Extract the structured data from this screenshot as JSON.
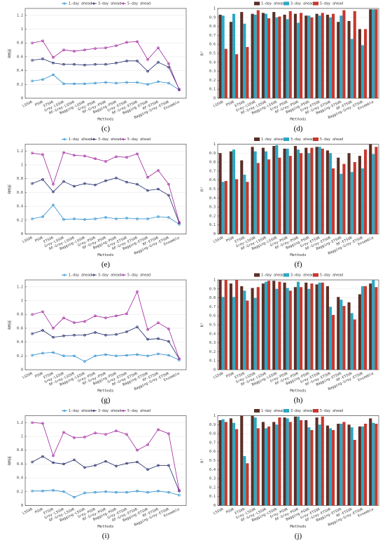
{
  "chart_data": [
    {
      "type": "line",
      "caption": "(c)",
      "xlabel": "Methods",
      "ylabel": "RMSE",
      "ylim": [
        0,
        1.3
      ],
      "yticks": [
        0,
        0.2,
        0.4,
        0.6,
        0.8,
        1,
        1.2
      ],
      "grid": true,
      "legend": "top",
      "categories": [
        "LSSVR",
        "PSVR",
        "ETSVR",
        "Grey-LSSVR",
        "RF-Grey-LSSVR",
        "Bagging-LSSVR",
        "Grey-PSVR",
        "RF-Grey-PSVR",
        "Bagging-PSVR",
        "Grey-ETSVR",
        "RF-Grey-ETSVR",
        "Bagging-ETSVR",
        "RF-ETSVR",
        "Bagging-Grey-ETSVR",
        "Ensemble"
      ],
      "series": [
        {
          "name": "1-day ahead",
          "color": "#2b8fd0",
          "values": [
            0.25,
            0.27,
            0.34,
            0.21,
            0.21,
            0.21,
            0.22,
            0.23,
            0.22,
            0.23,
            0.23,
            0.2,
            0.24,
            0.22,
            0.12
          ]
        },
        {
          "name": "3-day ahead",
          "color": "#1f2a6b",
          "values": [
            0.55,
            0.57,
            0.51,
            0.49,
            0.49,
            0.48,
            0.49,
            0.49,
            0.51,
            0.54,
            0.54,
            0.39,
            0.52,
            0.45,
            0.13
          ]
        },
        {
          "name": "5-day ahead",
          "color": "#a0249c",
          "values": [
            0.8,
            0.83,
            0.59,
            0.7,
            0.68,
            0.7,
            0.72,
            0.73,
            0.76,
            0.81,
            0.82,
            0.56,
            0.73,
            0.5,
            0.12
          ]
        }
      ]
    },
    {
      "type": "bar",
      "caption": "(d)",
      "xlabel": "Methods",
      "ylabel": "R²",
      "ylim": [
        0,
        1
      ],
      "yticks": [
        0,
        0.1,
        0.2,
        0.3,
        0.4,
        0.5,
        0.6,
        0.7,
        0.8,
        0.9,
        1
      ],
      "grid": true,
      "legend": "top",
      "categories": [
        "LSSVR",
        "PSVR",
        "ETSVR",
        "Grey-LSSVR",
        "RF-Grey-LSSVR",
        "Bagging-LSSVR",
        "Grey-PSVR",
        "RF-Grey-PSVR",
        "Bagging-PSVR",
        "Grey-ETSVR",
        "RF-Grey-ETSVR",
        "Bagging-ETSVR",
        "RF-ETSVR",
        "Bagging-Grey-ETSVR",
        "Ensemble"
      ],
      "series": [
        {
          "name": "1-day ahead",
          "color": "#5a2e26",
          "values": [
            0.93,
            0.85,
            0.96,
            0.94,
            0.95,
            0.96,
            0.93,
            0.94,
            0.92,
            0.94,
            0.93,
            0.85,
            0.86,
            0.77,
            0.99
          ]
        },
        {
          "name": "3-day ahead",
          "color": "#2aa8c4",
          "values": [
            0.92,
            0.94,
            0.83,
            0.93,
            0.94,
            0.9,
            0.88,
            0.84,
            0.92,
            0.92,
            0.9,
            0.92,
            0.66,
            0.59,
            0.99
          ]
        },
        {
          "name": "5-day ahead",
          "color": "#c8372d",
          "values": [
            0.55,
            0.49,
            0.57,
            0.98,
            0.89,
            0.91,
            0.97,
            0.95,
            0.9,
            0.95,
            0.94,
            0.98,
            0.97,
            0.77,
            0.99
          ]
        }
      ]
    },
    {
      "type": "line",
      "caption": "(e)",
      "xlabel": "Methods",
      "ylabel": "RMSE",
      "ylim": [
        0,
        1.3
      ],
      "yticks": [
        0,
        0.2,
        0.4,
        0.6,
        0.8,
        1,
        1.2
      ],
      "grid": true,
      "legend": "top",
      "categories": [
        "LSSVR",
        "PSVR",
        "ETSVR",
        "Grey-LSSVR",
        "RF-Grey-LSSVR",
        "Bagging-LSSVR",
        "Grey-PSVR",
        "RF-Grey-PSVR",
        "Bagging-PSVR",
        "Grey-ETSVR",
        "RF-Grey-ETSVR",
        "Bagging-ETSVR",
        "RF-ETSVR",
        "Bagging-Grey-ETSVR",
        "Ensemble"
      ],
      "series": [
        {
          "name": "1-day ahead",
          "color": "#2b8fd0",
          "values": [
            0.22,
            0.25,
            0.42,
            0.21,
            0.22,
            0.21,
            0.22,
            0.24,
            0.22,
            0.23,
            0.22,
            0.22,
            0.25,
            0.24,
            0.14
          ]
        },
        {
          "name": "3-day ahead",
          "color": "#1f2a6b",
          "values": [
            0.73,
            0.79,
            0.61,
            0.76,
            0.69,
            0.73,
            0.71,
            0.77,
            0.81,
            0.75,
            0.72,
            0.63,
            0.65,
            0.56,
            0.16
          ]
        },
        {
          "name": "5-day ahead",
          "color": "#a0249c",
          "values": [
            1.17,
            1.15,
            0.72,
            1.18,
            1.14,
            1.13,
            1.09,
            1.05,
            1.12,
            1.11,
            1.16,
            0.82,
            0.92,
            0.72,
            0.17
          ]
        }
      ]
    },
    {
      "type": "bar",
      "caption": "(f)",
      "xlabel": "Methods",
      "ylabel": "R²",
      "ylim": [
        0,
        1
      ],
      "yticks": [
        0,
        0.1,
        0.2,
        0.3,
        0.4,
        0.5,
        0.6,
        0.7,
        0.8,
        0.9,
        1
      ],
      "grid": true,
      "legend": "top",
      "categories": [
        "LSSVR",
        "PSVR",
        "ETSVR",
        "Grey-LSSVR",
        "RF-Grey-LSSVR",
        "Bagging-LSSVR",
        "Grey-PSVR",
        "RF-Grey-PSVR",
        "Bagging-PSVR",
        "Grey-ETSVR",
        "RF-Grey-ETSVR",
        "Bagging-ETSVR",
        "RF-ETSVR",
        "Bagging-Grey-ETSVR",
        "Ensemble"
      ],
      "series": [
        {
          "name": "1-day ahead",
          "color": "#5a2e26",
          "values": [
            0.9,
            0.92,
            0.82,
            0.97,
            0.96,
            0.98,
            0.95,
            0.98,
            0.96,
            0.97,
            0.93,
            0.85,
            0.9,
            0.87,
            1.0
          ]
        },
        {
          "name": "3-day ahead",
          "color": "#2aa8c4",
          "values": [
            0.58,
            0.94,
            0.66,
            0.92,
            0.92,
            0.99,
            0.95,
            0.94,
            0.9,
            0.97,
            0.9,
            0.67,
            0.69,
            0.73,
            0.89
          ]
        },
        {
          "name": "5-day ahead",
          "color": "#c8372d",
          "values": [
            0.59,
            0.61,
            0.58,
            0.79,
            0.83,
            0.85,
            0.87,
            0.9,
            0.96,
            0.95,
            0.73,
            0.78,
            0.8,
            0.94,
            0.97
          ]
        }
      ]
    },
    {
      "type": "line",
      "caption": "(g)",
      "xlabel": "Methods",
      "ylabel": "RMSE",
      "ylim": [
        0,
        1.3
      ],
      "yticks": [
        0,
        0.2,
        0.4,
        0.6,
        0.8,
        1,
        1.2
      ],
      "grid": true,
      "legend": "top",
      "categories": [
        "LSSVR",
        "PSVR",
        "ETSVR",
        "Grey-LSSVR",
        "RF-Grey-LSSVR",
        "Bagging-LSSVR",
        "Grey-PSVR",
        "RF-Grey-PSVR",
        "Bagging-PSVR",
        "Grey-ETSVR",
        "RF-Grey-ETSVR",
        "Bagging-ETSVR",
        "RF-ETSVR",
        "Bagging-Grey-ETSVR",
        "Ensemble"
      ],
      "series": [
        {
          "name": "1-day ahead",
          "color": "#2b8fd0",
          "values": [
            0.21,
            0.24,
            0.25,
            0.2,
            0.2,
            0.12,
            0.2,
            0.22,
            0.2,
            0.21,
            0.22,
            0.2,
            0.23,
            0.21,
            0.14
          ]
        },
        {
          "name": "3-day ahead",
          "color": "#1f2a6b",
          "values": [
            0.52,
            0.57,
            0.47,
            0.49,
            0.5,
            0.5,
            0.54,
            0.5,
            0.51,
            0.55,
            0.62,
            0.44,
            0.45,
            0.41,
            0.16
          ]
        },
        {
          "name": "5-day ahead",
          "color": "#a0249c",
          "values": [
            0.8,
            0.84,
            0.6,
            0.75,
            0.68,
            0.7,
            0.78,
            0.75,
            0.78,
            0.81,
            1.13,
            0.58,
            0.68,
            0.59,
            0.16
          ]
        }
      ]
    },
    {
      "type": "bar",
      "caption": "(h)",
      "xlabel": "Methods",
      "ylabel": "R²",
      "ylim": [
        0,
        1
      ],
      "yticks": [
        0,
        0.1,
        0.2,
        0.3,
        0.4,
        0.5,
        0.6,
        0.7,
        0.8,
        0.9,
        1
      ],
      "grid": true,
      "legend": "top",
      "categories": [
        "LSSVR",
        "PSVR",
        "ETSVR",
        "Grey-LSSVR",
        "RF-Grey-LSSVR",
        "Bagging-LSSVR",
        "Grey-PSVR",
        "RF-Grey-PSVR",
        "Bagging-PSVR",
        "Grey-ETSVR",
        "RF-Grey-ETSVR",
        "Bagging-ETSVR",
        "RF-ETSVR",
        "Bagging-Grey-ETSVR",
        "Ensemble"
      ],
      "series": [
        {
          "name": "1-day ahead",
          "color": "#5a2e26",
          "values": [
            1.0,
            0.96,
            0.93,
            0.91,
            0.96,
            0.99,
            0.97,
            0.92,
            0.97,
            0.95,
            0.93,
            0.81,
            0.75,
            0.84,
            0.96
          ]
        },
        {
          "name": "3-day ahead",
          "color": "#2aa8c4",
          "values": [
            0.81,
            0.81,
            0.88,
            0.8,
            0.98,
            0.9,
            0.91,
            0.98,
            0.9,
            0.97,
            0.7,
            0.78,
            0.63,
            0.93,
            1.0
          ]
        },
        {
          "name": "5-day ahead",
          "color": "#c8372d",
          "values": [
            1.0,
            1.0,
            0.77,
            0.92,
            0.99,
            0.98,
            0.88,
            0.92,
            0.96,
            0.97,
            0.61,
            0.71,
            0.56,
            0.93,
            0.92
          ]
        }
      ]
    },
    {
      "type": "line",
      "caption": "(i)",
      "xlabel": "Methods",
      "ylabel": "RMSE",
      "ylim": [
        0,
        1.3
      ],
      "yticks": [
        0,
        0.2,
        0.4,
        0.6,
        0.8,
        1,
        1.2
      ],
      "grid": true,
      "legend": "top",
      "categories": [
        "LSSVR",
        "PSVR",
        "ETSVR",
        "Grey-LSSVR",
        "RF-Grey-LSSVR",
        "Bagging-LSSVR",
        "Grey-PSVR",
        "RF-Grey-PSVR",
        "Bagging-PSVR",
        "Grey-ETSVR",
        "RF-Grey-ETSVR",
        "Bagging-ETSVR",
        "RF-ETSVR",
        "Bagging-Grey-ETSVR",
        "Ensemble"
      ],
      "series": [
        {
          "name": "1-day ahead",
          "color": "#2b8fd0",
          "values": [
            0.21,
            0.21,
            0.22,
            0.2,
            0.12,
            0.18,
            0.19,
            0.2,
            0.19,
            0.19,
            0.21,
            0.19,
            0.21,
            0.19,
            0.15
          ]
        },
        {
          "name": "3-day ahead",
          "color": "#1f2a6b",
          "values": [
            0.63,
            0.71,
            0.62,
            0.6,
            0.66,
            0.55,
            0.58,
            0.64,
            0.57,
            0.61,
            0.63,
            0.52,
            0.58,
            0.58,
            0.21
          ]
        },
        {
          "name": "5-day ahead",
          "color": "#a0249c",
          "values": [
            1.2,
            1.19,
            0.72,
            1.06,
            0.98,
            0.99,
            1.05,
            1.03,
            1.08,
            1.03,
            0.8,
            0.88,
            1.1,
            1.04,
            0.22
          ]
        }
      ]
    },
    {
      "type": "bar",
      "caption": "(j)",
      "xlabel": "Methods",
      "ylabel": "R²",
      "ylim": [
        0,
        1
      ],
      "yticks": [
        0,
        0.1,
        0.2,
        0.3,
        0.4,
        0.5,
        0.6,
        0.7,
        0.8,
        0.9,
        1
      ],
      "grid": true,
      "legend": "top",
      "categories": [
        "LSSVR",
        "PSVR",
        "ETSVR",
        "Grey-LSSVR",
        "RF-Grey-LSSVR",
        "Bagging-LSSVR",
        "Grey-PSVR",
        "RF-Grey-PSVR",
        "Bagging-PSVR",
        "Grey-ETSVR",
        "RF-Grey-ETSVR",
        "Bagging-ETSVR",
        "RF-ETSVR",
        "Bagging-Grey-ETSVR",
        "Ensemble"
      ],
      "series": [
        {
          "name": "1-day ahead",
          "color": "#5a2e26",
          "values": [
            0.95,
            0.97,
            1.0,
            1.0,
            0.93,
            0.93,
            0.98,
            0.99,
            0.95,
            0.98,
            0.89,
            0.91,
            0.9,
            0.88,
            0.97
          ]
        },
        {
          "name": "3-day ahead",
          "color": "#2aa8c4",
          "values": [
            0.96,
            0.92,
            0.55,
            0.98,
            0.86,
            0.9,
            0.97,
            0.99,
            0.87,
            0.9,
            0.86,
            0.91,
            0.87,
            0.88,
            0.92
          ]
        },
        {
          "name": "5-day ahead",
          "color": "#c8372d",
          "values": [
            0.93,
            0.85,
            0.47,
            0.86,
            0.88,
            0.98,
            0.93,
            0.95,
            0.84,
            0.99,
            0.84,
            0.93,
            0.73,
            0.91,
            0.91
          ]
        }
      ]
    }
  ]
}
